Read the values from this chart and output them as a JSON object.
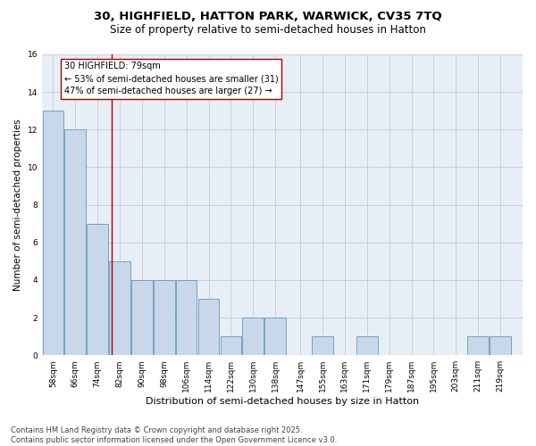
{
  "title_line1": "30, HIGHFIELD, HATTON PARK, WARWICK, CV35 7TQ",
  "title_line2": "Size of property relative to semi-detached houses in Hatton",
  "xlabel": "Distribution of semi-detached houses by size in Hatton",
  "ylabel": "Number of semi-detached properties",
  "bar_color": "#c8d8ea",
  "bar_edge_color": "#6699bb",
  "categories": [
    "58sqm",
    "66sqm",
    "74sqm",
    "82sqm",
    "90sqm",
    "98sqm",
    "106sqm",
    "114sqm",
    "122sqm",
    "130sqm",
    "138sqm",
    "147sqm",
    "155sqm",
    "163sqm",
    "171sqm",
    "179sqm",
    "187sqm",
    "195sqm",
    "203sqm",
    "211sqm",
    "219sqm"
  ],
  "values": [
    13,
    12,
    7,
    5,
    4,
    4,
    4,
    3,
    1,
    2,
    2,
    0,
    1,
    0,
    1,
    0,
    0,
    0,
    0,
    1,
    1
  ],
  "x_positions": [
    58,
    66,
    74,
    82,
    90,
    98,
    106,
    114,
    122,
    130,
    138,
    147,
    155,
    163,
    171,
    179,
    187,
    195,
    203,
    211,
    219
  ],
  "ylim": [
    0,
    16
  ],
  "xlim": [
    54,
    227
  ],
  "yticks": [
    0,
    2,
    4,
    6,
    8,
    10,
    12,
    14,
    16
  ],
  "property_value": 79,
  "property_label": "30 HIGHFIELD: 79sqm",
  "pct_smaller": 53,
  "pct_larger": 47,
  "count_smaller": 31,
  "count_larger": 27,
  "vline_color": "#aa0000",
  "annotation_box_edge": "#aa0000",
  "grid_color": "#c8c8d8",
  "background_color": "#e8eef6",
  "footnote_line1": "Contains HM Land Registry data © Crown copyright and database right 2025.",
  "footnote_line2": "Contains public sector information licensed under the Open Government Licence v3.0.",
  "title_fontsize": 9.5,
  "subtitle_fontsize": 8.5,
  "xlabel_fontsize": 8,
  "ylabel_fontsize": 7.5,
  "tick_fontsize": 6.5,
  "annotation_fontsize": 7,
  "footnote_fontsize": 6
}
